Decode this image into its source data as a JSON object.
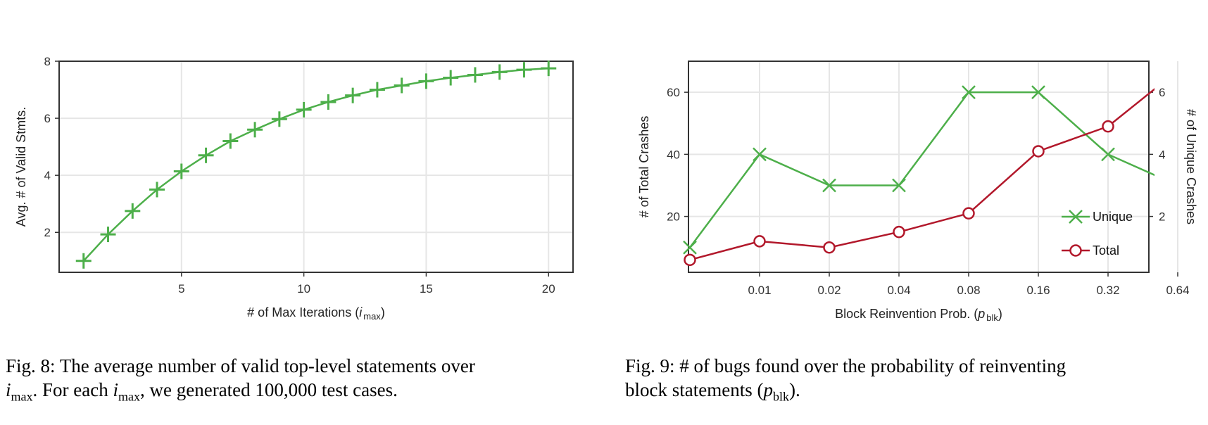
{
  "chart_data": [
    {
      "type": "line",
      "id": "fig8",
      "title": "",
      "xlabel_prefix": "# of Max Iterations (",
      "xlabel_var": "i",
      "xlabel_sub": "max",
      "xlabel_suffix": ")",
      "ylabel": "Avg. # of Valid Stmts.",
      "xlim": [
        0,
        21
      ],
      "ylim": [
        0.6,
        8
      ],
      "xticks": [
        5,
        10,
        15,
        20
      ],
      "yticks": [
        2,
        4,
        6,
        8
      ],
      "grid": true,
      "series": [
        {
          "marker": "plus",
          "color": "#4daf4a",
          "x": [
            1,
            2,
            3,
            4,
            5,
            6,
            7,
            8,
            9,
            10,
            11,
            12,
            13,
            14,
            15,
            16,
            17,
            18,
            19,
            20
          ],
          "y": [
            1.0,
            1.93,
            2.75,
            3.5,
            4.14,
            4.7,
            5.2,
            5.6,
            5.97,
            6.3,
            6.57,
            6.8,
            7.0,
            7.15,
            7.3,
            7.42,
            7.52,
            7.62,
            7.7,
            7.75
          ]
        }
      ]
    },
    {
      "type": "line",
      "id": "fig9",
      "title": "",
      "xlabel_prefix": "Block Reinvention Prob. (",
      "xlabel_var": "p",
      "xlabel_sub": "blk",
      "xlabel_suffix": ")",
      "ylabel_left": "# of Total Crashes",
      "ylabel_right": "# of Unique Crashes",
      "categories": [
        "",
        "0.01",
        "0.02",
        "0.04",
        "0.08",
        "0.16",
        "0.32",
        "0.64"
      ],
      "xtick_labels": [
        "0.01",
        "0.02",
        "0.04",
        "0.08",
        "0.16",
        "0.32",
        "0.64"
      ],
      "ylim_left": [
        2,
        70
      ],
      "yticks_left": [
        20,
        40,
        60
      ],
      "ylim_right": [
        0.2,
        7
      ],
      "yticks_right": [
        2,
        4,
        6
      ],
      "grid": true,
      "legend_position": "bottom-right",
      "series": [
        {
          "name": "Unique",
          "axis": "right",
          "marker": "x",
          "color": "#4daf4a",
          "values": [
            1,
            4,
            3,
            3,
            6,
            6,
            4,
            3
          ]
        },
        {
          "name": "Total",
          "axis": "left",
          "marker": "circle",
          "color": "#b2182b",
          "values": [
            6,
            12,
            10,
            15,
            21,
            41,
            49,
            67
          ]
        }
      ]
    }
  ],
  "captions": {
    "fig8": {
      "label": "Fig. 8:",
      "line1_rest": " The average number of valid top-level statements over",
      "var": "i",
      "sub": "max",
      "line2_a": ". For each ",
      "line2_b": ", we generated 100,000 test cases."
    },
    "fig9": {
      "label": "Fig. 9:",
      "line1_rest": " # of bugs found over the probability of reinventing",
      "line2_a": "block statements (",
      "var": "p",
      "sub": "blk",
      "line2_b": ")."
    }
  }
}
